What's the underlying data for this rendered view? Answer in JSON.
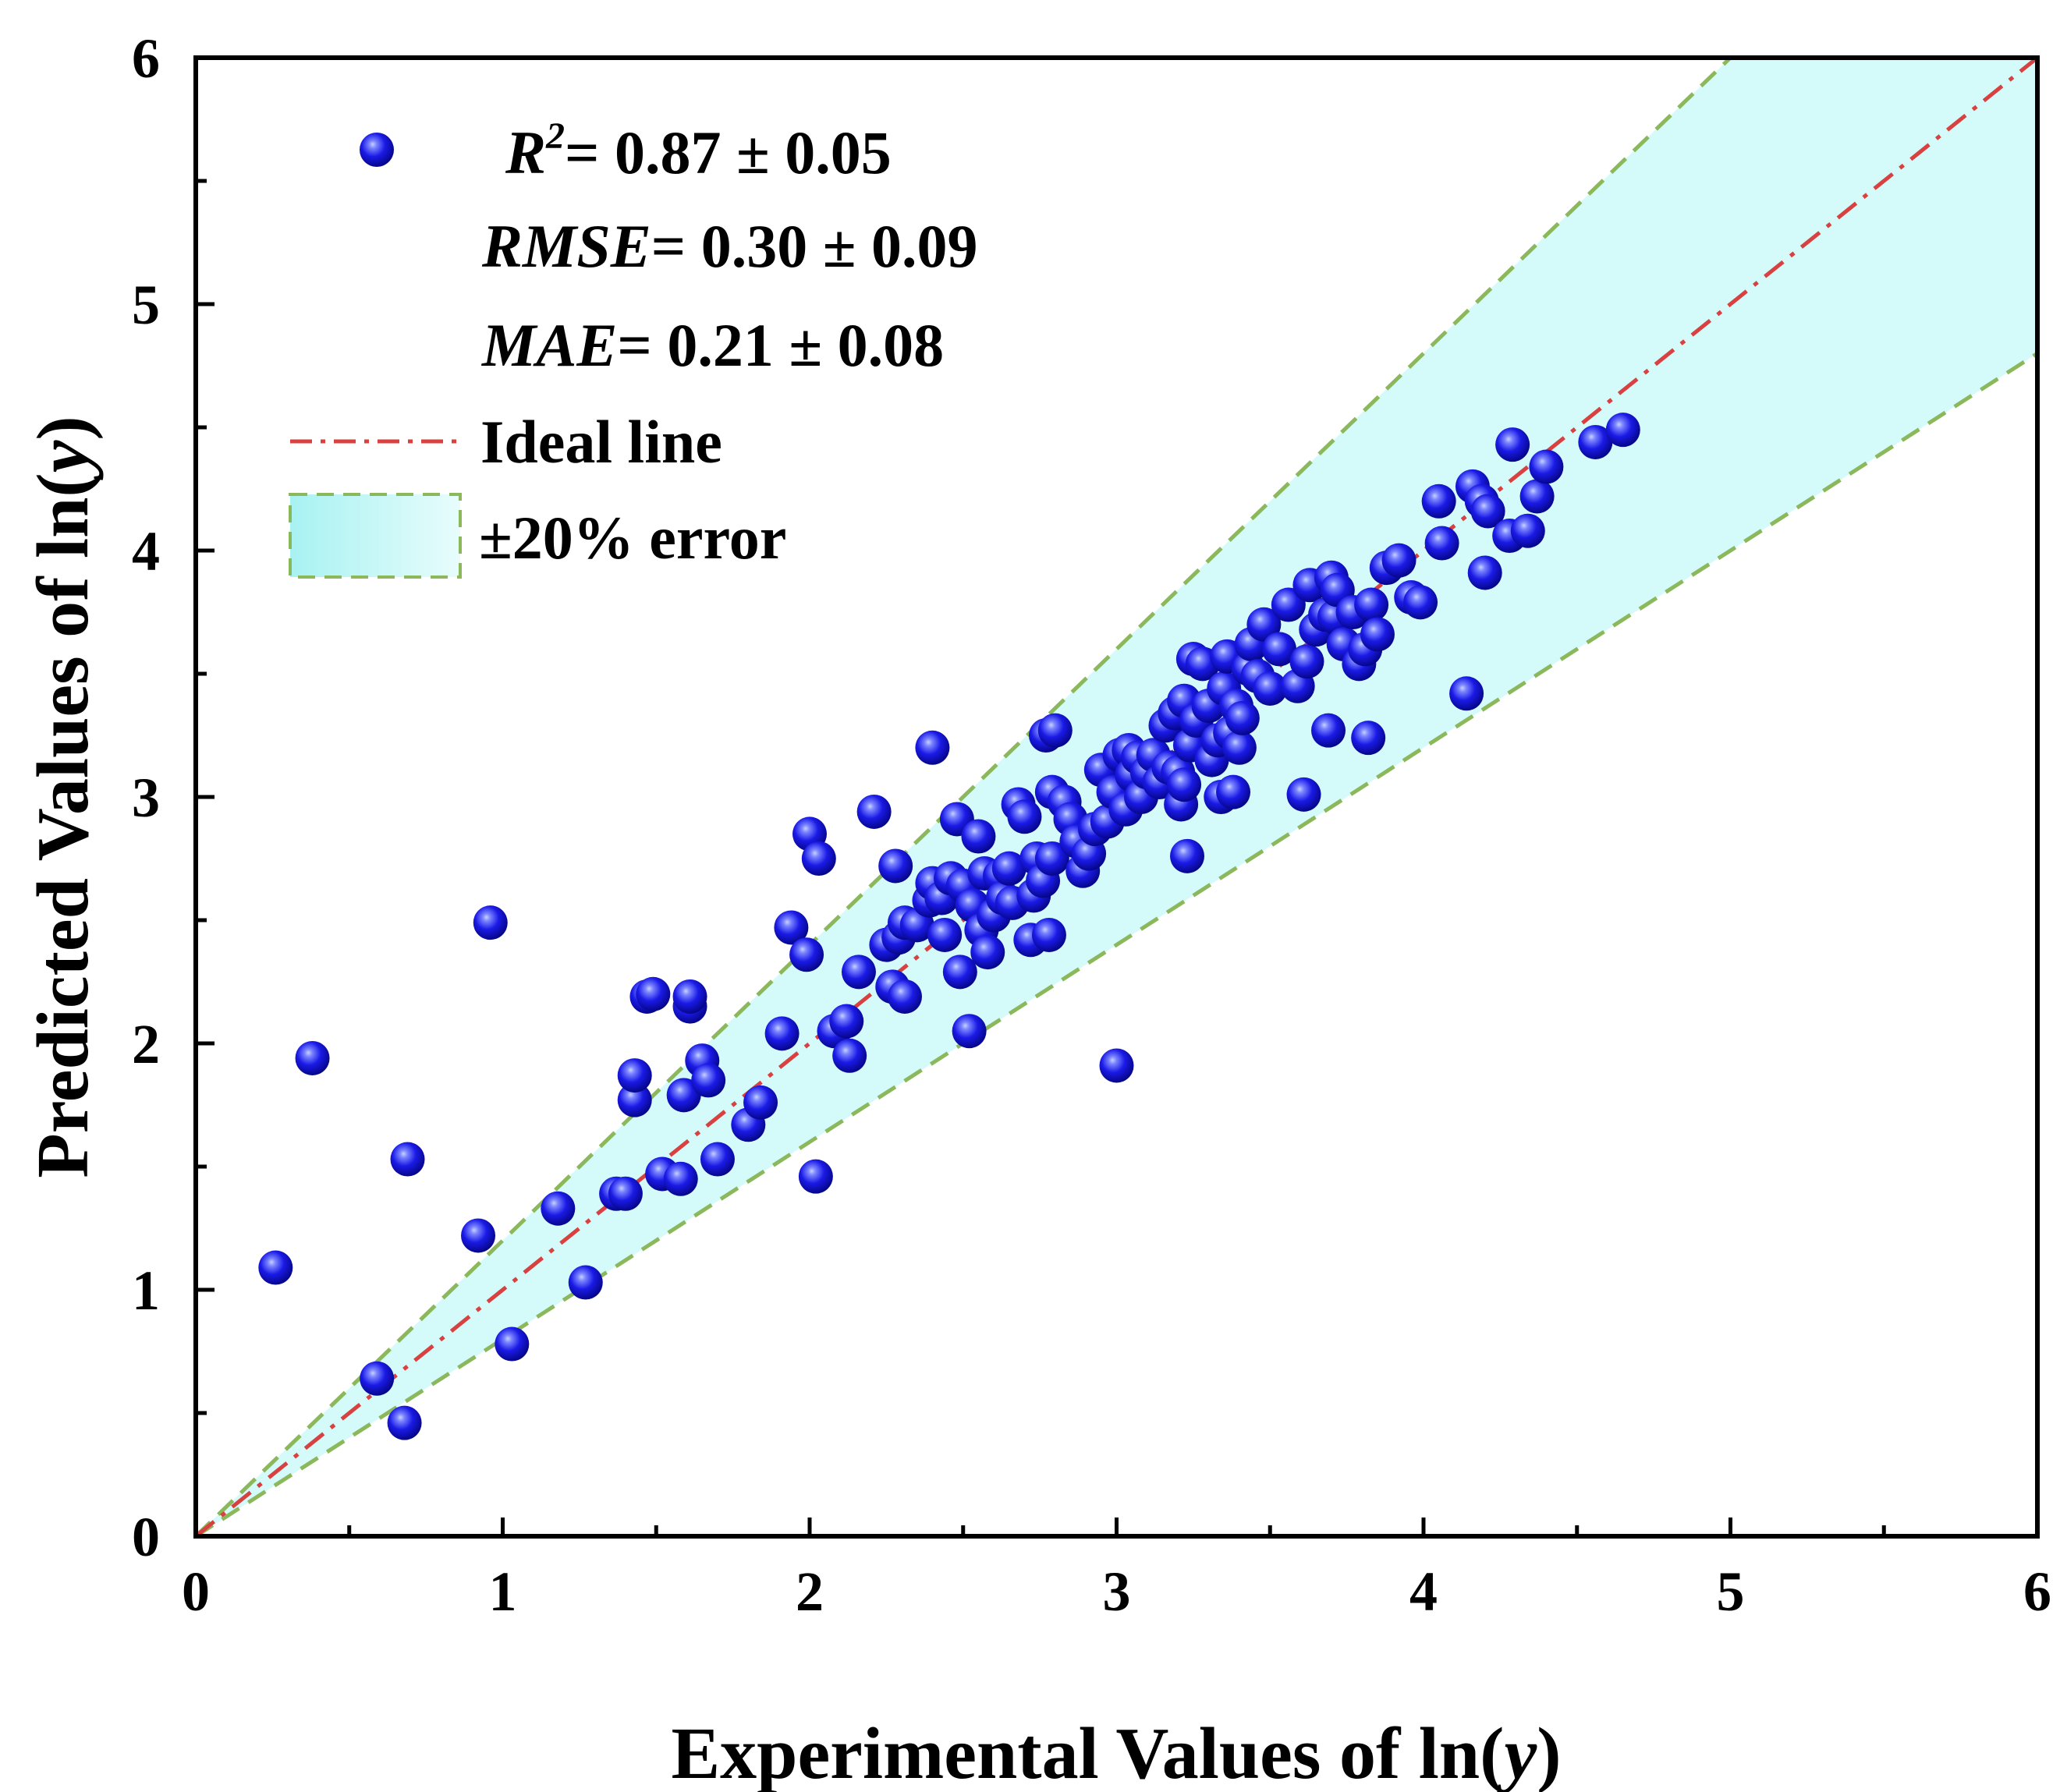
{
  "chart_data": {
    "type": "scatter",
    "title": "",
    "xlabel_prefix": "Experimental Values of ln(",
    "xlabel_var": "y",
    "xlabel_suffix": ")",
    "ylabel_prefix": "Predicted Values of ln(",
    "ylabel_var": "y",
    "ylabel_suffix": ")",
    "xlim": [
      0,
      6
    ],
    "ylim": [
      0,
      6
    ],
    "x_ticks": [
      "0",
      "1",
      "2",
      "3",
      "4",
      "5",
      "6"
    ],
    "y_ticks": [
      "0",
      "1",
      "2",
      "3",
      "4",
      "5",
      "6"
    ],
    "grid": false,
    "colors": {
      "point": "#1a1ae6",
      "point_highlight": "#c8d2ff",
      "ideal_line": "#d94040",
      "band_fill": "#d4fafa",
      "band_edge": "#8cb85c"
    },
    "legend": {
      "position": "top-left",
      "r2_label": "R",
      "r2_sup": "2",
      "r2_value": "= 0.87 ± 0.05",
      "rmse_label": "RMSE",
      "rmse_value": "= 0.30 ± 0.09",
      "mae_label": "MAE",
      "mae_value": "= 0.21 ± 0.08",
      "ideal_line_label": "Ideal line",
      "band_label": "±20% error"
    },
    "ideal_line": {
      "slope": 1,
      "intercept": 0
    },
    "error_band_fraction": 0.2,
    "series": [
      {
        "name": "Data",
        "points": [
          [
            0.26,
            1.09
          ],
          [
            0.38,
            1.94
          ],
          [
            0.59,
            0.64
          ],
          [
            0.68,
            0.46
          ],
          [
            0.69,
            1.53
          ],
          [
            0.92,
            1.22
          ],
          [
            0.96,
            2.49
          ],
          [
            1.03,
            0.78
          ],
          [
            1.18,
            1.33
          ],
          [
            1.27,
            1.03
          ],
          [
            1.37,
            1.39
          ],
          [
            1.4,
            1.39
          ],
          [
            1.43,
            1.77
          ],
          [
            1.43,
            1.87
          ],
          [
            1.47,
            2.19
          ],
          [
            1.49,
            2.2
          ],
          [
            1.52,
            1.47
          ],
          [
            1.58,
            1.45
          ],
          [
            1.59,
            1.79
          ],
          [
            1.61,
            2.15
          ],
          [
            1.61,
            2.19
          ],
          [
            1.65,
            1.93
          ],
          [
            1.67,
            1.85
          ],
          [
            1.7,
            1.53
          ],
          [
            1.8,
            1.67
          ],
          [
            1.84,
            1.76
          ],
          [
            1.91,
            2.04
          ],
          [
            1.94,
            2.47
          ],
          [
            1.99,
            2.36
          ],
          [
            2.0,
            2.85
          ],
          [
            2.02,
            1.46
          ],
          [
            2.03,
            2.75
          ],
          [
            2.08,
            2.05
          ],
          [
            2.12,
            2.09
          ],
          [
            2.13,
            1.95
          ],
          [
            2.16,
            2.29
          ],
          [
            2.21,
            2.94
          ],
          [
            2.25,
            2.4
          ],
          [
            2.27,
            2.23
          ],
          [
            2.28,
            2.72
          ],
          [
            2.29,
            2.43
          ],
          [
            2.31,
            2.49
          ],
          [
            2.31,
            2.19
          ],
          [
            2.35,
            2.48
          ],
          [
            2.39,
            2.58
          ],
          [
            2.4,
            2.65
          ],
          [
            2.4,
            3.2
          ],
          [
            2.43,
            2.59
          ],
          [
            2.44,
            2.44
          ],
          [
            2.46,
            2.67
          ],
          [
            2.48,
            2.91
          ],
          [
            2.49,
            2.29
          ],
          [
            2.5,
            2.64
          ],
          [
            2.52,
            2.05
          ],
          [
            2.53,
            2.56
          ],
          [
            2.55,
            2.84
          ],
          [
            2.56,
            2.46
          ],
          [
            2.57,
            2.69
          ],
          [
            2.58,
            2.37
          ],
          [
            2.6,
            2.52
          ],
          [
            2.62,
            2.68
          ],
          [
            2.63,
            2.59
          ],
          [
            2.65,
            2.71
          ],
          [
            2.66,
            2.57
          ],
          [
            2.68,
            2.97
          ],
          [
            2.7,
            2.92
          ],
          [
            2.72,
            2.42
          ],
          [
            2.73,
            2.6
          ],
          [
            2.74,
            2.75
          ],
          [
            2.76,
            2.66
          ],
          [
            2.77,
            3.25
          ],
          [
            2.78,
            2.44
          ],
          [
            2.79,
            2.75
          ],
          [
            2.79,
            3.02
          ],
          [
            2.8,
            3.27
          ],
          [
            2.83,
            2.98
          ],
          [
            2.85,
            2.91
          ],
          [
            2.87,
            2.82
          ],
          [
            2.89,
            2.7
          ],
          [
            2.91,
            2.77
          ],
          [
            2.93,
            2.87
          ],
          [
            2.95,
            3.11
          ],
          [
            2.97,
            2.9
          ],
          [
            2.99,
            3.02
          ],
          [
            3.0,
            1.91
          ],
          [
            3.01,
            3.17
          ],
          [
            3.03,
            2.95
          ],
          [
            3.04,
            3.19
          ],
          [
            3.05,
            3.09
          ],
          [
            3.07,
            3.16
          ],
          [
            3.08,
            3.0
          ],
          [
            3.1,
            3.1
          ],
          [
            3.12,
            3.17
          ],
          [
            3.14,
            3.06
          ],
          [
            3.16,
            3.29
          ],
          [
            3.17,
            3.12
          ],
          [
            3.19,
            3.34
          ],
          [
            3.2,
            3.1
          ],
          [
            3.21,
            2.97
          ],
          [
            3.22,
            3.05
          ],
          [
            3.22,
            3.39
          ],
          [
            3.23,
            2.76
          ],
          [
            3.24,
            3.21
          ],
          [
            3.25,
            3.56
          ],
          [
            3.26,
            3.31
          ],
          [
            3.28,
            3.54
          ],
          [
            3.3,
            3.37
          ],
          [
            3.31,
            3.15
          ],
          [
            3.33,
            3.23
          ],
          [
            3.34,
            3.0
          ],
          [
            3.35,
            3.44
          ],
          [
            3.36,
            3.57
          ],
          [
            3.37,
            3.26
          ],
          [
            3.38,
            3.02
          ],
          [
            3.39,
            3.37
          ],
          [
            3.4,
            3.2
          ],
          [
            3.41,
            3.32
          ],
          [
            3.43,
            3.52
          ],
          [
            3.44,
            3.62
          ],
          [
            3.46,
            3.49
          ],
          [
            3.48,
            3.7
          ],
          [
            3.5,
            3.44
          ],
          [
            3.53,
            3.6
          ],
          [
            3.56,
            3.78
          ],
          [
            3.59,
            3.45
          ],
          [
            3.61,
            3.01
          ],
          [
            3.62,
            3.55
          ],
          [
            3.63,
            3.86
          ],
          [
            3.65,
            3.68
          ],
          [
            3.68,
            3.74
          ],
          [
            3.69,
            3.27
          ],
          [
            3.7,
            3.89
          ],
          [
            3.71,
            3.73
          ],
          [
            3.72,
            3.84
          ],
          [
            3.74,
            3.62
          ],
          [
            3.77,
            3.75
          ],
          [
            3.79,
            3.54
          ],
          [
            3.81,
            3.6
          ],
          [
            3.82,
            3.24
          ],
          [
            3.83,
            3.78
          ],
          [
            3.85,
            3.66
          ],
          [
            3.88,
            3.93
          ],
          [
            3.92,
            3.96
          ],
          [
            3.96,
            3.81
          ],
          [
            3.99,
            3.79
          ],
          [
            4.05,
            4.2
          ],
          [
            4.06,
            4.03
          ],
          [
            4.14,
            3.42
          ],
          [
            4.16,
            4.26
          ],
          [
            4.19,
            4.2
          ],
          [
            4.2,
            3.91
          ],
          [
            4.21,
            4.16
          ],
          [
            4.28,
            4.06
          ],
          [
            4.29,
            4.43
          ],
          [
            4.34,
            4.08
          ],
          [
            4.37,
            4.22
          ],
          [
            4.4,
            4.34
          ],
          [
            4.56,
            4.44
          ],
          [
            4.65,
            4.49
          ]
        ]
      }
    ]
  }
}
